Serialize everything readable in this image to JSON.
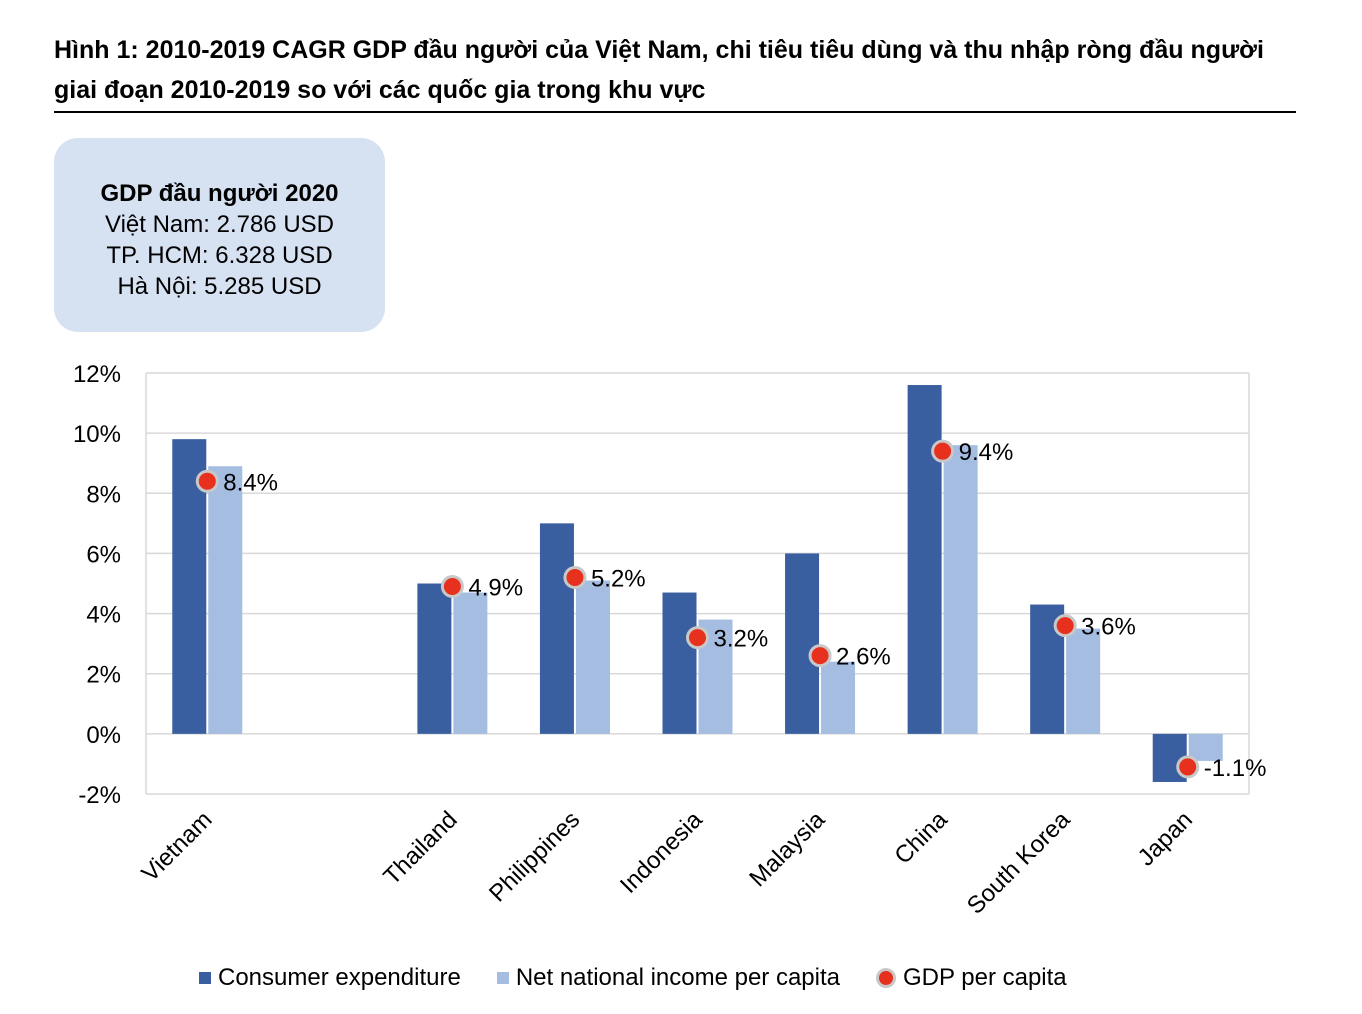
{
  "title": "Hình 1: 2010-2019 CAGR GDP đầu người của Việt Nam, chi tiêu tiêu dùng và thu nhập ròng đầu người giai đoạn 2010-2019 so với các quốc gia trong khu vực",
  "info_box": {
    "title": "GDP đầu người 2020",
    "lines": [
      "Việt Nam: 2.786 USD",
      "TP. HCM: 6.328 USD",
      "Hà Nội: 5.285 USD"
    ]
  },
  "colors": {
    "consumer": "#3a5fa0",
    "income": "#a4bde0",
    "gdp_dot": "#e8301f",
    "gdp_dot_border": "#c8c8c8",
    "grid": "#d9d9d9"
  },
  "chart_data": {
    "type": "bar",
    "categories": [
      "Vietnam",
      "",
      "Thailand",
      "Philippines",
      "Indonesia",
      "Malaysia",
      "China",
      "South Korea",
      "Japan"
    ],
    "series": [
      {
        "name": "Consumer expenditure",
        "kind": "bar",
        "values": [
          9.8,
          null,
          5.0,
          7.0,
          4.7,
          6.0,
          11.6,
          4.3,
          -1.6
        ]
      },
      {
        "name": "Net national income per capita",
        "kind": "bar",
        "values": [
          8.9,
          null,
          4.7,
          5.1,
          3.8,
          2.4,
          9.6,
          3.5,
          -0.9
        ]
      },
      {
        "name": "GDP per capita",
        "kind": "marker",
        "values": [
          8.4,
          null,
          4.9,
          5.2,
          3.2,
          2.6,
          9.4,
          3.6,
          -1.1
        ]
      }
    ],
    "data_labels": [
      "8.4%",
      "",
      "4.9%",
      "5.2%",
      "3.2%",
      "2.6%",
      "9.4%",
      "3.6%",
      "-1.1%"
    ],
    "ylim": [
      -2,
      12
    ],
    "yticks": [
      -2,
      0,
      2,
      4,
      6,
      8,
      10,
      12
    ],
    "ytick_labels": [
      "-2%",
      "0%",
      "2%",
      "4%",
      "6%",
      "8%",
      "10%",
      "12%"
    ],
    "grid": true,
    "legend_position": "bottom",
    "xlabel": "",
    "ylabel": ""
  }
}
